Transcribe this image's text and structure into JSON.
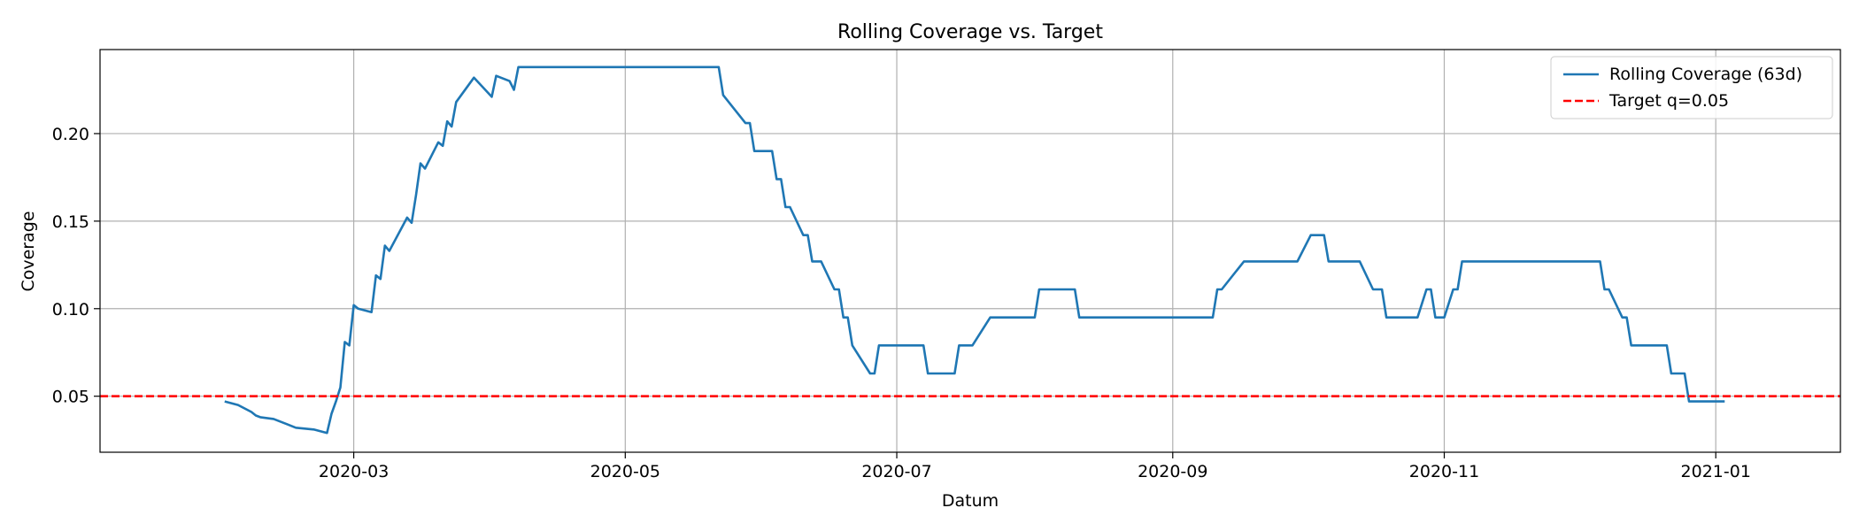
{
  "chart_data": {
    "type": "line",
    "title": "Rolling Coverage vs. Target",
    "xlabel": "Datum",
    "ylabel": "Coverage",
    "xlim": [
      "2020-01-04",
      "2021-01-29"
    ],
    "ylim": [
      0.018,
      0.248
    ],
    "x_ticks": [
      {
        "date": "2020-03-01",
        "label": "2020-03"
      },
      {
        "date": "2020-05-01",
        "label": "2020-05"
      },
      {
        "date": "2020-07-01",
        "label": "2020-07"
      },
      {
        "date": "2020-09-01",
        "label": "2020-09"
      },
      {
        "date": "2020-11-01",
        "label": "2020-11"
      },
      {
        "date": "2021-01-01",
        "label": "2021-01"
      }
    ],
    "y_ticks": [
      {
        "value": 0.05,
        "label": "0.05"
      },
      {
        "value": 0.1,
        "label": "0.10"
      },
      {
        "value": 0.15,
        "label": "0.15"
      },
      {
        "value": 0.2,
        "label": "0.20"
      }
    ],
    "grid": true,
    "legend_position": "top-right",
    "series": [
      {
        "name": "Rolling Coverage (63d)",
        "color": "#1f77b4",
        "style": "solid",
        "points": [
          [
            "2020-02-01",
            0.047
          ],
          [
            "2020-02-04",
            0.045
          ],
          [
            "2020-02-07",
            0.041
          ],
          [
            "2020-02-08",
            0.039
          ],
          [
            "2020-02-09",
            0.038
          ],
          [
            "2020-02-12",
            0.037
          ],
          [
            "2020-02-15",
            0.034
          ],
          [
            "2020-02-17",
            0.032
          ],
          [
            "2020-02-21",
            0.031
          ],
          [
            "2020-02-24",
            0.029
          ],
          [
            "2020-02-25",
            0.04
          ],
          [
            "2020-02-26",
            0.047
          ],
          [
            "2020-02-27",
            0.055
          ],
          [
            "2020-02-28",
            0.081
          ],
          [
            "2020-02-29",
            0.079
          ],
          [
            "2020-03-01",
            0.102
          ],
          [
            "2020-03-02",
            0.1
          ],
          [
            "2020-03-05",
            0.098
          ],
          [
            "2020-03-06",
            0.119
          ],
          [
            "2020-03-07",
            0.117
          ],
          [
            "2020-03-08",
            0.136
          ],
          [
            "2020-03-09",
            0.133
          ],
          [
            "2020-03-13",
            0.152
          ],
          [
            "2020-03-14",
            0.149
          ],
          [
            "2020-03-15",
            0.165
          ],
          [
            "2020-03-16",
            0.183
          ],
          [
            "2020-03-17",
            0.18
          ],
          [
            "2020-03-20",
            0.195
          ],
          [
            "2020-03-21",
            0.193
          ],
          [
            "2020-03-22",
            0.207
          ],
          [
            "2020-03-23",
            0.204
          ],
          [
            "2020-03-24",
            0.218
          ],
          [
            "2020-03-28",
            0.232
          ],
          [
            "2020-04-01",
            0.221
          ],
          [
            "2020-04-02",
            0.233
          ],
          [
            "2020-04-05",
            0.23
          ],
          [
            "2020-04-06",
            0.225
          ],
          [
            "2020-04-07",
            0.238
          ],
          [
            "2020-05-22",
            0.238
          ],
          [
            "2020-05-23",
            0.222
          ],
          [
            "2020-05-28",
            0.206
          ],
          [
            "2020-05-29",
            0.206
          ],
          [
            "2020-05-30",
            0.19
          ],
          [
            "2020-06-03",
            0.19
          ],
          [
            "2020-06-04",
            0.174
          ],
          [
            "2020-06-05",
            0.174
          ],
          [
            "2020-06-06",
            0.158
          ],
          [
            "2020-06-07",
            0.158
          ],
          [
            "2020-06-10",
            0.142
          ],
          [
            "2020-06-11",
            0.142
          ],
          [
            "2020-06-12",
            0.127
          ],
          [
            "2020-06-14",
            0.127
          ],
          [
            "2020-06-17",
            0.111
          ],
          [
            "2020-06-18",
            0.111
          ],
          [
            "2020-06-19",
            0.095
          ],
          [
            "2020-06-20",
            0.095
          ],
          [
            "2020-06-21",
            0.079
          ],
          [
            "2020-06-25",
            0.063
          ],
          [
            "2020-06-26",
            0.063
          ],
          [
            "2020-06-27",
            0.079
          ],
          [
            "2020-07-07",
            0.079
          ],
          [
            "2020-07-08",
            0.063
          ],
          [
            "2020-07-14",
            0.063
          ],
          [
            "2020-07-15",
            0.079
          ],
          [
            "2020-07-18",
            0.079
          ],
          [
            "2020-07-22",
            0.095
          ],
          [
            "2020-08-01",
            0.095
          ],
          [
            "2020-08-02",
            0.111
          ],
          [
            "2020-08-10",
            0.111
          ],
          [
            "2020-08-11",
            0.095
          ],
          [
            "2020-09-10",
            0.095
          ],
          [
            "2020-09-11",
            0.111
          ],
          [
            "2020-09-12",
            0.111
          ],
          [
            "2020-09-17",
            0.127
          ],
          [
            "2020-09-29",
            0.127
          ],
          [
            "2020-10-02",
            0.142
          ],
          [
            "2020-10-05",
            0.142
          ],
          [
            "2020-10-06",
            0.127
          ],
          [
            "2020-10-13",
            0.127
          ],
          [
            "2020-10-16",
            0.111
          ],
          [
            "2020-10-18",
            0.111
          ],
          [
            "2020-10-19",
            0.095
          ],
          [
            "2020-10-26",
            0.095
          ],
          [
            "2020-10-28",
            0.111
          ],
          [
            "2020-10-29",
            0.111
          ],
          [
            "2020-10-30",
            0.095
          ],
          [
            "2020-11-01",
            0.095
          ],
          [
            "2020-11-03",
            0.111
          ],
          [
            "2020-11-04",
            0.111
          ],
          [
            "2020-11-05",
            0.127
          ],
          [
            "2020-12-06",
            0.127
          ],
          [
            "2020-12-07",
            0.111
          ],
          [
            "2020-12-08",
            0.111
          ],
          [
            "2020-12-11",
            0.095
          ],
          [
            "2020-12-12",
            0.095
          ],
          [
            "2020-12-13",
            0.079
          ],
          [
            "2020-12-21",
            0.079
          ],
          [
            "2020-12-22",
            0.063
          ],
          [
            "2020-12-25",
            0.063
          ],
          [
            "2020-12-26",
            0.047
          ],
          [
            "2021-01-03",
            0.047
          ]
        ]
      },
      {
        "name": "Target q=0.05",
        "color": "#ff0000",
        "style": "dashed",
        "constant": 0.05
      }
    ]
  }
}
